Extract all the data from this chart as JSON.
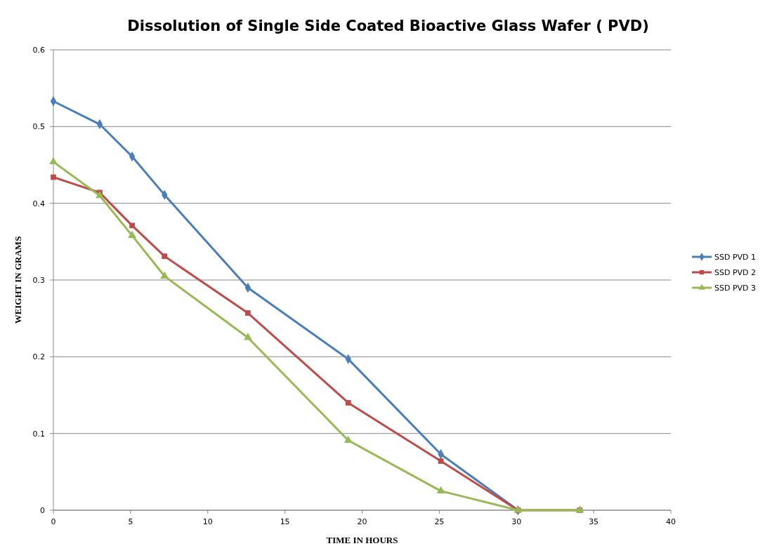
{
  "chart_data": {
    "type": "line",
    "title": "Dissolution of Single Side Coated Bioactive Glass Wafer ( PVD)",
    "xlabel": "TIME IN HOURS",
    "ylabel": "WEIGHT IN GRAMS",
    "xlim": [
      0,
      40
    ],
    "xticks": [
      0,
      5,
      10,
      15,
      20,
      25,
      30,
      35,
      40
    ],
    "ylim": [
      0,
      0.6
    ],
    "yticks": [
      0,
      0.1,
      0.2,
      0.3,
      0.4,
      0.5,
      0.6
    ],
    "grid": "y",
    "legend": "right",
    "series": [
      {
        "name": "SSD PVD 1",
        "color": "#4a7ebb",
        "marker": "diamond",
        "x": [
          0,
          3,
          5.1,
          7.2,
          12.6,
          19.1,
          25.1,
          30.1
        ],
        "values": [
          0.533,
          0.503,
          0.461,
          0.411,
          0.29,
          0.197,
          0.073,
          0
        ]
      },
      {
        "name": "SSD PVD 2",
        "color": "#be4b48",
        "marker": "square",
        "x": [
          0,
          3,
          5.1,
          7.2,
          12.6,
          19.1,
          25.1,
          30.1,
          34.1
        ],
        "values": [
          0.434,
          0.414,
          0.371,
          0.331,
          0.257,
          0.14,
          0.064,
          0,
          0
        ]
      },
      {
        "name": "SSD PVD 3",
        "color": "#98b954",
        "marker": "triangle",
        "x": [
          0,
          3,
          5.1,
          7.2,
          12.6,
          19.1,
          25.1,
          30.1,
          34.1
        ],
        "values": [
          0.454,
          0.41,
          0.358,
          0.305,
          0.225,
          0.091,
          0.025,
          0,
          0
        ]
      }
    ]
  }
}
